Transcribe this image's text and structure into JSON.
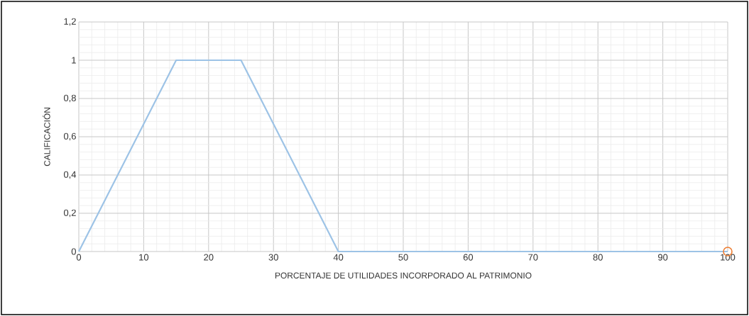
{
  "chart_data": {
    "type": "line",
    "xlabel": "PORCENTAJE DE UTILIDADES INCORPORADO AL PATRIMONIO",
    "ylabel": "CALIFICACIÓN",
    "xlim": [
      0,
      100
    ],
    "ylim": [
      0,
      1.2
    ],
    "xticks": [
      0,
      10,
      20,
      30,
      40,
      50,
      60,
      70,
      80,
      90,
      100
    ],
    "yticks": [
      0,
      {
        "value": 0.2,
        "label": "0,2"
      },
      {
        "value": 0.4,
        "label": "0,4"
      },
      {
        "value": 0.6,
        "label": "0,6"
      },
      {
        "value": 0.8,
        "label": "0,8"
      },
      1,
      {
        "value": 1.2,
        "label": "1,2"
      }
    ],
    "grid": true,
    "series": [
      {
        "color": "#9dc3e6",
        "x": [
          0,
          15,
          25,
          40,
          100
        ],
        "values": [
          0,
          1,
          1,
          0,
          0
        ]
      },
      {
        "type": "scatter",
        "color": "#ed7d31",
        "marker": "circle",
        "x": [
          100
        ],
        "values": [
          0
        ]
      }
    ]
  }
}
